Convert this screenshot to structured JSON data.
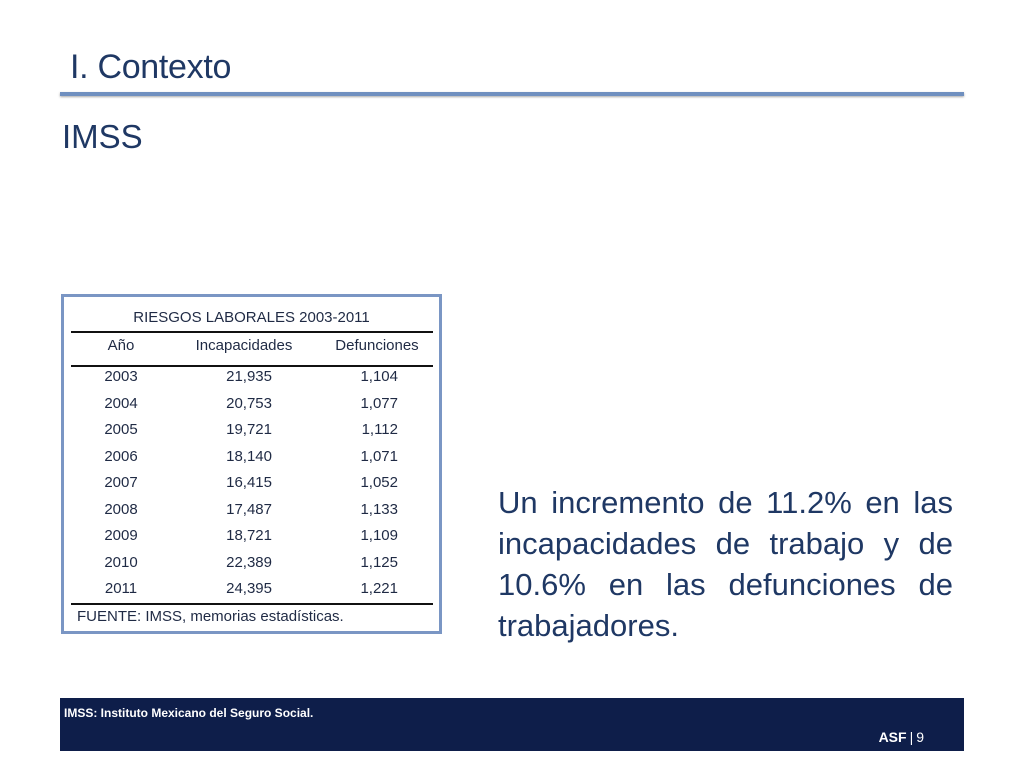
{
  "header": {
    "title": "I. Contexto"
  },
  "subtitle": "IMSS",
  "table": {
    "title": "RIESGOS LABORALES 2003-2011",
    "columns": [
      "Año",
      "Incapacidades",
      "Defunciones"
    ],
    "rows": [
      [
        "2003",
        "21,935",
        "1,104"
      ],
      [
        "2004",
        "20,753",
        "1,077"
      ],
      [
        "2005",
        "19,721",
        "1,112"
      ],
      [
        "2006",
        "18,140",
        "1,071"
      ],
      [
        "2007",
        "16,415",
        "1,052"
      ],
      [
        "2008",
        "17,487",
        "1,133"
      ],
      [
        "2009",
        "18,721",
        "1,109"
      ],
      [
        "2010",
        "22,389",
        "1,125"
      ],
      [
        "2011",
        "24,395",
        "1,221"
      ]
    ],
    "source": "FUENTE: IMSS, memorias estadísticas."
  },
  "note": "Un incremento de 11.2% en las incapacidades de trabajo y de 10.6% en las defunciones de trabajadores.",
  "footer": {
    "note": "IMSS: Instituto Mexicano del Seguro Social.",
    "brand": "ASF",
    "separator": "|",
    "page": "9"
  }
}
